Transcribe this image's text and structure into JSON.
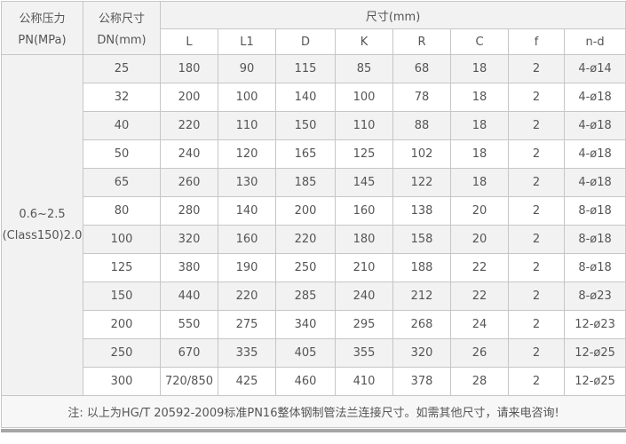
{
  "table": {
    "header": {
      "pressure_label": [
        "公称压力",
        "PN(MPa)"
      ],
      "size_label": [
        "公称尺寸",
        "DN(mm)"
      ],
      "dimensions_label": "尺寸(mm)",
      "dimension_columns": [
        "L",
        "L1",
        "D",
        "K",
        "R",
        "C",
        "f",
        "n-d"
      ]
    },
    "pressure_value": [
      "0.6~2.5",
      "(Class150)2.0"
    ],
    "rows": [
      {
        "dn": "25",
        "values": [
          "180",
          "90",
          "115",
          "85",
          "68",
          "18",
          "2",
          "4-ø14"
        ]
      },
      {
        "dn": "32",
        "values": [
          "200",
          "100",
          "140",
          "100",
          "78",
          "18",
          "2",
          "4-ø18"
        ]
      },
      {
        "dn": "40",
        "values": [
          "220",
          "110",
          "150",
          "110",
          "88",
          "18",
          "2",
          "4-ø18"
        ]
      },
      {
        "dn": "50",
        "values": [
          "240",
          "120",
          "165",
          "125",
          "102",
          "18",
          "2",
          "4-ø18"
        ]
      },
      {
        "dn": "65",
        "values": [
          "260",
          "130",
          "185",
          "145",
          "122",
          "18",
          "2",
          "4-ø18"
        ]
      },
      {
        "dn": "80",
        "values": [
          "280",
          "140",
          "200",
          "160",
          "138",
          "20",
          "2",
          "8-ø18"
        ]
      },
      {
        "dn": "100",
        "values": [
          "320",
          "160",
          "220",
          "180",
          "158",
          "20",
          "2",
          "8-ø18"
        ]
      },
      {
        "dn": "125",
        "values": [
          "380",
          "190",
          "250",
          "210",
          "188",
          "22",
          "2",
          "8-ø18"
        ]
      },
      {
        "dn": "150",
        "values": [
          "440",
          "220",
          "285",
          "240",
          "212",
          "22",
          "2",
          "8-ø23"
        ]
      },
      {
        "dn": "200",
        "values": [
          "550",
          "275",
          "340",
          "295",
          "268",
          "24",
          "2",
          "12-ø23"
        ]
      },
      {
        "dn": "250",
        "values": [
          "670",
          "335",
          "405",
          "355",
          "320",
          "26",
          "2",
          "12-ø25"
        ]
      },
      {
        "dn": "300",
        "values": [
          "720/850",
          "425",
          "460",
          "410",
          "378",
          "28",
          "2",
          "12-ø25"
        ]
      }
    ]
  },
  "note": "注: 以上为HG/T 20592-2009标准PN16整体钢制管法兰连接尺寸。如需其他尺寸，请来电咨询!",
  "colors": {
    "header_bg": "#f2f2f2",
    "stripe_bg": "#f2f2f2",
    "white_bg": "#ffffff",
    "note_bg": "#f7f7f7",
    "border": "#c6c6c6",
    "text": "#555555",
    "bottom_bar": "#a6a6a6"
  }
}
